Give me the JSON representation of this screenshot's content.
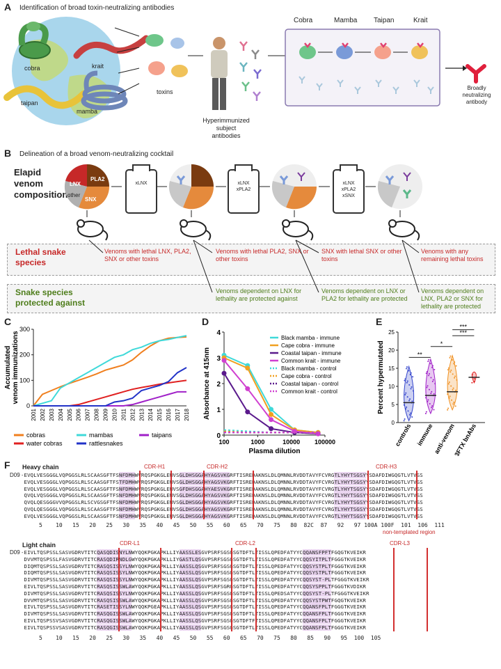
{
  "panelA": {
    "label": "A",
    "title": "Identification of broad toxin-neutralizing antibodies",
    "snakes": [
      "cobra",
      "krait",
      "taipan",
      "mamba"
    ],
    "toxins_label": "toxins",
    "subject_label": "Hyperimmunized\nsubject\nantibodies",
    "species": [
      "Cobra",
      "Mamba",
      "Taipan",
      "Krait"
    ],
    "result_label": "Broadly\nneutralizing\nantibody"
  },
  "panelB": {
    "label": "B",
    "title": "Delineation of a broad venom-neutralizing cocktail",
    "composition_label": "Elapid\nvenom\ncomposition",
    "pie_labels": [
      "LNX",
      "PLA2",
      "other",
      "SNX"
    ],
    "vials": [
      "xLNX",
      "xLNX\nxPLA2",
      "xLNX\nxPLA2\nxSNX"
    ],
    "lethal_label": "Lethal snake\nspecies",
    "lethal_texts": [
      "Venoms with lethal LNX, PLA2, SNX or other toxins",
      "Venoms with lethal PLA2, SNX or other toxins",
      "SNX with lethal SNX or other toxins",
      "Venoms with any remaining lethal toxins"
    ],
    "protected_label": "Snake species\nprotected against",
    "protected_texts": [
      "Venoms dependent on LNX for lethality are protected against",
      "Venoms dependent on LNX or PLA2 for lethality are protected",
      "Venoms dependent on LNX, PLA2 or SNX for lethality are protected"
    ]
  },
  "panelC": {
    "label": "C",
    "chart_data": {
      "type": "line",
      "ylabel": "Accumulated\nvenom immunizations",
      "x": [
        "2001",
        "2002",
        "2003",
        "2004",
        "2005",
        "2006",
        "2007",
        "2008",
        "2009",
        "2010",
        "2011",
        "2012",
        "2013",
        "2014",
        "2015",
        "2016",
        "2017",
        "2018"
      ],
      "ylim": [
        0,
        300
      ],
      "yticks": [
        0,
        100,
        200,
        300
      ],
      "series": [
        {
          "name": "cobras",
          "color": "#f07f1e",
          "values": [
            0,
            45,
            60,
            75,
            88,
            100,
            112,
            125,
            140,
            150,
            160,
            180,
            210,
            235,
            255,
            265,
            268,
            270
          ]
        },
        {
          "name": "mambas",
          "color": "#3fd9d9",
          "values": [
            0,
            10,
            20,
            70,
            90,
            110,
            130,
            150,
            170,
            190,
            200,
            220,
            230,
            245,
            255,
            260,
            268,
            275
          ]
        },
        {
          "name": "taipans",
          "color": "#a020c8",
          "values": [
            0,
            0,
            0,
            0,
            0,
            0,
            0,
            0,
            0,
            0,
            0,
            5,
            15,
            25,
            35,
            45,
            55,
            55
          ]
        },
        {
          "name": "water cobras",
          "color": "#e02020",
          "values": [
            0,
            0,
            0,
            0,
            0,
            5,
            15,
            25,
            35,
            45,
            55,
            65,
            72,
            78,
            85,
            90,
            95,
            100
          ]
        },
        {
          "name": "rattlesnakes",
          "color": "#2233c8",
          "values": [
            0,
            0,
            0,
            0,
            0,
            0,
            0,
            0,
            0,
            15,
            20,
            30,
            60,
            70,
            80,
            95,
            130,
            150
          ]
        }
      ]
    }
  },
  "panelD": {
    "label": "D",
    "chart_data": {
      "type": "line",
      "xlabel": "Plasma dilution",
      "ylabel": "Absorbance at 415nm",
      "x": [
        100,
        500,
        2500,
        12500,
        62500
      ],
      "xticks": [
        "100",
        "1000",
        "10000",
        "100000"
      ],
      "ylim": [
        0,
        4
      ],
      "yticks": [
        0,
        1,
        2,
        3,
        4
      ],
      "series": [
        {
          "name": "Black mamba - immune",
          "color": "#3fd9d9",
          "style": "solid",
          "values": [
            3.1,
            2.7,
            1.0,
            0.2,
            0.1
          ]
        },
        {
          "name": "Cape cobra - immune",
          "color": "#f0a020",
          "style": "solid",
          "values": [
            3.0,
            2.6,
            0.8,
            0.2,
            0.1
          ]
        },
        {
          "name": "Coastal taipan - immune",
          "color": "#5a1a8c",
          "style": "solid",
          "values": [
            2.4,
            0.9,
            0.25,
            0.1,
            0.05
          ]
        },
        {
          "name": "Common krait - immune",
          "color": "#d040d0",
          "style": "solid",
          "values": [
            2.9,
            1.8,
            0.6,
            0.15,
            0.05
          ]
        },
        {
          "name": "Black mamba - control",
          "color": "#3fd9d9",
          "style": "dashed",
          "values": [
            0.2,
            0.15,
            0.1,
            0.1,
            0.1
          ]
        },
        {
          "name": "Cape cobra - control",
          "color": "#f0a020",
          "style": "dashed",
          "values": [
            0.15,
            0.1,
            0.1,
            0.1,
            0.1
          ]
        },
        {
          "name": "Coastal taipan - control",
          "color": "#5a1a8c",
          "style": "dashed",
          "values": [
            0.1,
            0.1,
            0.1,
            0.1,
            0.1
          ]
        },
        {
          "name": "Common krait - control",
          "color": "#d040d0",
          "style": "dashed",
          "values": [
            0.1,
            0.1,
            0.1,
            0.1,
            0.1
          ]
        }
      ]
    }
  },
  "panelE": {
    "label": "E",
    "chart_data": {
      "type": "violin",
      "ylabel": "Percent hypermutated",
      "categories": [
        "controls",
        "immune",
        "anti-venom",
        "3FTX bnAbs"
      ],
      "medians": [
        5.5,
        7.5,
        8.5,
        12.5
      ],
      "colors": [
        "#3344cc",
        "#a020c8",
        "#f09020",
        "#e02020"
      ],
      "ylim": [
        0,
        25
      ],
      "yticks": [
        0,
        5,
        10,
        15,
        20,
        25
      ],
      "significance": [
        "**",
        "*",
        "***",
        "***"
      ]
    }
  },
  "panelF": {
    "label": "F",
    "heavy_label": "Heavy chain",
    "light_label": "Light chain",
    "d09": "D09",
    "heavy_cdrs": [
      "CDR-H1",
      "CDR-H2",
      "CDR-H3"
    ],
    "light_cdrs": [
      "CDR-L1",
      "CDR-L2",
      "CDR-L3"
    ],
    "non_templated": "non-templated region",
    "heavy_positions": "5    10   15   20   25   30   35   40   45   50   55   60   65   70   75   80  82C  87   92   97 100A 100F  101  106  111",
    "light_positions": "5    10   15   20   25   30   35   40   45   50   55   60   65   70   75   80   85   90   95  100  105",
    "heavy_seqs": [
      "-EVQLVESGGGLVQPGGSLRLSCAASGFTFSNFDMHWVRQSPGKGLEWVSGLDHSGGAHYAGSVKGRFTISREDAKNSLDLQMNNLRVDDTAVYFCVRGTLYHYTSGSYYSDAFDIWGQGTLVTVSS",
      " EVQLVESGGGLVQPGGSLRLSCAASGFTFSTFDMHWVRQSPGKGLEWVSGLDHSGGAHYAGSVKGRFTISREDAKNSLDLQMNNLRVDDTAVYFCVRGTLYHYTSGSYYSDAFDIWGQGTLVTVSS",
      " EVQLVESGGGLVQPGGSLRLSCAASGFTFSNFDMHWVRQSPGKGLEWVSGFDHSGGAHYAESVKGRFTISREDAKNSLDLQMNNLRVDDTAVYFCVRGTLYHYTSGSYYSDAFDIWGQGTLVTVSS",
      " QVQLVQSGGGLVQPGGSLRLSCAASGFTFSNFDMHWVRQSPGKGLEWVSGLDHSGGAHYAGSVKGRFTISREDAKNSLDLQMNNLRVDDTAVYFCVRGTLYHYTSGSYYSDAFDIWGQGTLVTVSS",
      " QVQLQESGGGVVQPGGSLRLSCVGSGFTFSNFDMHWVRQSPGKGLEWVSGLDHSGGAHYAGSVKGRFTISREDAKNSLDLQMNNLRVDDTAVYFCVRGTLYHYTSGSYYSDAFDIWGQGTLVTVSS",
      " QVQLQESGGGLVQPGGSLRLSCAASGFTFSNFDMHWVRQSPGKGLEWVSGLDHSGGAHYAGSVKGRFTISREDAKNSLDLQMNNLRVDDTAVYFCVRGTLYHYTSGSYYSDAFDIWGQGTLVTVSS",
      " EVQLVESGGGLVQPGGSLRLSCAASGFTFSNFDMHWVRQSPGKGLEWVSGLDHSGGAHYAGSVKGRFTISREDAKNSLDLQMNNLRVDDTAVYFCVRGTLYHYTSGSYYSDAFDIWGQGTLVTVSS"
    ],
    "light_seqs": [
      "-EIVLTQSPSSLSASVGDRVTITCQASQDISNYLNWYQQKPGKAPKLLIYAASSLESGVPSRFSGSGSGTDFTLTISSLQPEDFATYYCQQANSFPFTFGQGTKVEIKR",
      " DVVMTQSPSSLFASVGDRVTITCRASQDIRNDLGWYQQKPGKAPKLLIYGASTLQSGVPSRFSGSGSGTDFTLTISSLQPEDFATYYCQQSYITPLTFGGGTKVEIKR",
      " DIQMTQSPSSLSASVGDRVTITCRASQSISSYLNWYQQKPGKAPKLLIYAASSLQSGVPSRFSGSGSGTDFTLTISSLQPEDFATYYCQQSYSTPLTFGGGTKVEIKR",
      " DIQMTQSPSSLSASVGDRVTITCRASQSISSYLNWYQQKPGKAPKLLIYAASSLQSGVPSRFSGSGSGTDFTLTISSLQPEDFATYYCQQSYSTPLTFGGGTKVEIKR",
      " DIVMTQSPSSLSASVGDRVTITCRASQSISSYLNWYQQKPGKAPKLLIYAASSLQSGVPSRFSGSGSGTDFTLTISSLQPEDFATYYCQQSYST-PLTFGGGTKVEIKR",
      " EIVLTQSPSSLSASVGDRVTITCRASQSISSWLAWYQQKPGKAPKLLIYAASSLQSGVPSRFSGRGSGTDFTLTISSLQPEDFATYYCQQSYSPPLTFGGGTKVDIKR",
      " DIVMTQSPSSLSASVGDRVTITCRASQSISSYLNWYQQKPGKAPKLLIYAASSLQSGVPSRFSGSGSGTDFTLTISSLQPEDSATYYCQQSYST-PLTFGGGTKVEIKR",
      " DVVMTQSPSSLSASVGDRVTITCRASQSISSWLAWYQQKPGKAPKLLIYAASSLQSGVPSRFSGSGSGTDFTLTISSLQPEDFATYYCQQSYSTPWTFGQGTKVEIKR",
      " EIVLTQSPSSLSASVGDRVTITCRASETISSYLNWYQQKPGEAPKLLIYAASSLQSGVPSRFSGSGSGTDFTLTISSLQPEDFATYYCQQANSFPLTFGGGTKVEIKR",
      " DIVMTQSPSSLSASVGDRVTITCRASQGISSWLAWYQQKPGKAPKLLIYAASSLQSGVPSRFSGSGSGTDFTLTISSLQPEDFATYYCQQANSFPLTFGGGTKVEIKR",
      " EIVLTQSPSSVSASVGDRVTITCRASQGISSWLAWYQQKPGKAPKLLIYAASSLQSGVPSRFSGSGSGTDFTFTISSLQPEDFATYYCQQANSFPLTFGGGTKVEIKR",
      " EIVLTQSPSSVSASVGDRVTITCRASQGISSWLAWYQQKPGKAPKLLIYAASSLQSGVPSRFSGSGSGTDFTLTISSLQPEDFATYYCQQANSFPLTFGGGTKVEIKR"
    ]
  }
}
